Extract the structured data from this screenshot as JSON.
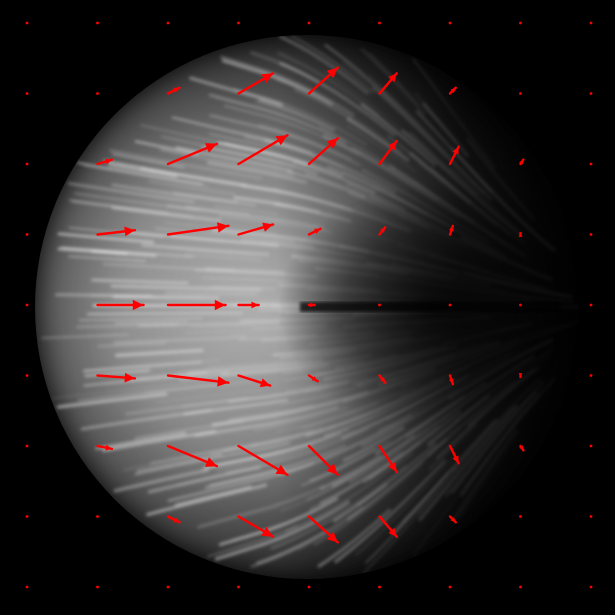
{
  "colors": {
    "background": "#000000",
    "arrow": "#ff0000",
    "streak": "#ffffff"
  },
  "vector_field": {
    "grid_columns": 9,
    "grid_rows": 9,
    "arrows_rows": [
      [
        [
          0,
          0
        ],
        [
          0,
          0
        ],
        [
          0,
          0
        ],
        [
          0,
          0
        ],
        [
          0,
          0
        ],
        [
          0,
          0
        ],
        [
          0,
          0
        ],
        [
          0,
          0
        ],
        [
          0,
          0
        ]
      ],
      [
        [
          0,
          0
        ],
        [
          0,
          0
        ],
        [
          0.16,
          0.08
        ],
        [
          0.48,
          0.28
        ],
        [
          0.4,
          0.36
        ],
        [
          0.24,
          0.28
        ],
        [
          0.08,
          0.08
        ],
        [
          0,
          0
        ],
        [
          0,
          0
        ]
      ],
      [
        [
          0,
          0
        ],
        [
          0.2,
          0.06
        ],
        [
          0.68,
          0.28
        ],
        [
          0.68,
          0.4
        ],
        [
          0.4,
          0.36
        ],
        [
          0.24,
          0.32
        ],
        [
          0.12,
          0.24
        ],
        [
          0.04,
          0.06
        ],
        [
          0,
          0
        ]
      ],
      [
        [
          0,
          0
        ],
        [
          0.52,
          0.06
        ],
        [
          0.84,
          0.12
        ],
        [
          0.48,
          0.14
        ],
        [
          0.16,
          0.08
        ],
        [
          0.08,
          0.1
        ],
        [
          0.04,
          0.12
        ],
        [
          0,
          0.02
        ],
        [
          0,
          0
        ]
      ],
      [
        [
          0,
          0
        ],
        [
          0.64,
          0
        ],
        [
          0.8,
          0
        ],
        [
          0.28,
          0
        ],
        [
          0.08,
          0
        ],
        [
          0,
          0
        ],
        [
          0,
          0
        ],
        [
          0,
          0
        ],
        [
          0,
          0
        ]
      ],
      [
        [
          0,
          0
        ],
        [
          0.52,
          -0.04
        ],
        [
          0.84,
          -0.1
        ],
        [
          0.44,
          -0.14
        ],
        [
          0.12,
          -0.08
        ],
        [
          0.08,
          -0.1
        ],
        [
          0.04,
          -0.12
        ],
        [
          0,
          -0.02
        ],
        [
          0,
          0
        ]
      ],
      [
        [
          0,
          0
        ],
        [
          0.2,
          -0.04
        ],
        [
          0.68,
          -0.28
        ],
        [
          0.68,
          -0.4
        ],
        [
          0.4,
          -0.4
        ],
        [
          0.24,
          -0.36
        ],
        [
          0.12,
          -0.24
        ],
        [
          0.04,
          -0.06
        ],
        [
          0,
          0
        ]
      ],
      [
        [
          0,
          0
        ],
        [
          0,
          0
        ],
        [
          0.16,
          -0.08
        ],
        [
          0.48,
          -0.28
        ],
        [
          0.4,
          -0.36
        ],
        [
          0.24,
          -0.28
        ],
        [
          0.08,
          -0.08
        ],
        [
          0,
          0
        ],
        [
          0,
          0
        ]
      ],
      [
        [
          0,
          0
        ],
        [
          0,
          0
        ],
        [
          0,
          0
        ],
        [
          0,
          0
        ],
        [
          0,
          0
        ],
        [
          0,
          0
        ],
        [
          0,
          0
        ],
        [
          0,
          0
        ],
        [
          0,
          0
        ]
      ]
    ]
  }
}
